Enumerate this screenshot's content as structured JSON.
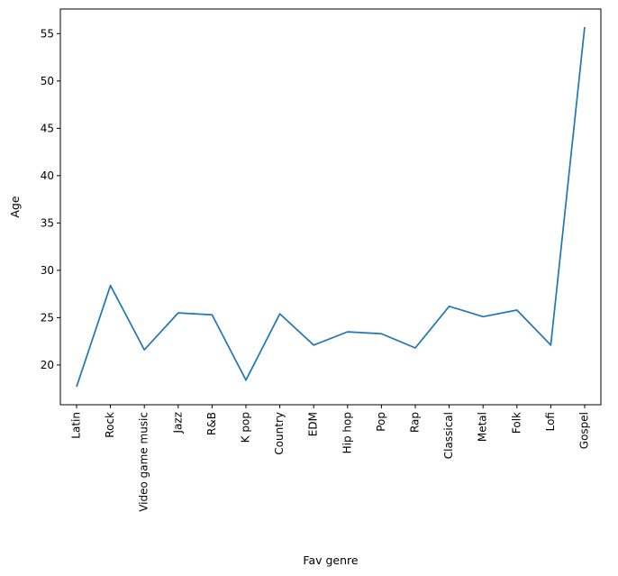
{
  "chart_data": {
    "type": "line",
    "categories": [
      "Latin",
      "Rock",
      "Video game music",
      "Jazz",
      "R&B",
      "K pop",
      "Country",
      "EDM",
      "Hip hop",
      "Pop",
      "Rap",
      "Classical",
      "Metal",
      "Folk",
      "Lofi",
      "Gospel"
    ],
    "series": [
      {
        "values": [
          17.7,
          28.4,
          21.6,
          25.5,
          25.3,
          18.4,
          25.4,
          22.1,
          23.5,
          23.3,
          21.8,
          26.2,
          25.1,
          25.8,
          22.1,
          55.7
        ]
      }
    ],
    "xlabel": "Fav genre",
    "ylabel": "Age",
    "yticks": [
      20,
      25,
      30,
      35,
      40,
      45,
      50,
      55
    ],
    "ylim": [
      15.8,
      57.6
    ],
    "grid": false,
    "colors": {
      "line": "#1f77b4",
      "axes": "#000000"
    }
  }
}
